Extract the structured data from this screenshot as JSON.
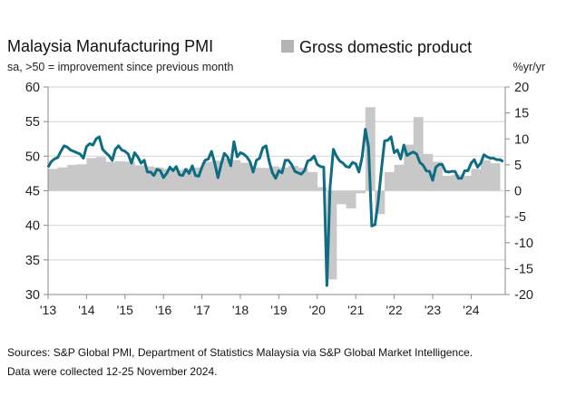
{
  "chart_data": {
    "type": "bar+line",
    "title": "Malaysia Manufacturing PMI",
    "subtitle": "sa, >50 = improvement since previous month",
    "right_axis_label": "%yr/yr",
    "legend": [
      {
        "name": "Gross domestic product",
        "color": "#c8c8c8",
        "position": "top-right"
      }
    ],
    "x_tick_labels": [
      "'13",
      "'14",
      "'15",
      "'16",
      "'17",
      "'18",
      "'19",
      "'20",
      "'21",
      "'22",
      "'23",
      "'24"
    ],
    "left_axis": {
      "ylim": [
        30,
        60
      ],
      "ticks": [
        "30",
        "35",
        "40",
        "45",
        "50",
        "55",
        "60"
      ]
    },
    "right_axis": {
      "ylim": [
        -20,
        20
      ],
      "ticks": [
        "-20",
        "-15",
        "-10",
        "-5",
        "0",
        "5",
        "10",
        "15",
        "20"
      ]
    },
    "grid": true,
    "pmi_series": {
      "axis": "left",
      "color": "#0e6d82",
      "frequency": "monthly",
      "start": "2013-01",
      "end": "2024-11",
      "values": [
        48.4,
        49.2,
        49.6,
        49.8,
        50.7,
        51.5,
        51.3,
        50.9,
        50.7,
        50.5,
        50.3,
        49.7,
        51.4,
        51.8,
        51.6,
        52.5,
        52.8,
        51.0,
        50.5,
        50.1,
        49.4,
        51.0,
        51.5,
        50.9,
        50.7,
        50.3,
        49.0,
        50.5,
        49.9,
        49.0,
        49.4,
        47.7,
        47.7,
        47.2,
        48.1,
        47.9,
        46.9,
        47.5,
        48.4,
        47.9,
        48.5,
        47.3,
        47.2,
        48.1,
        47.5,
        48.6,
        47.2,
        47.1,
        48.4,
        49.4,
        49.6,
        50.7,
        49.0,
        46.9,
        48.8,
        50.4,
        49.9,
        48.6,
        52.1,
        49.9,
        50.5,
        50.3,
        49.9,
        49.2,
        47.7,
        49.4,
        49.7,
        51.2,
        51.5,
        49.2,
        47.6,
        46.8,
        47.9,
        47.6,
        49.4,
        49.4,
        48.8,
        47.8,
        47.6,
        47.4,
        47.9,
        49.3,
        49.5,
        50.0,
        48.8,
        48.5,
        48.4,
        31.3,
        45.6,
        51.0,
        50.0,
        49.3,
        49.0,
        48.5,
        48.4,
        49.1,
        48.9,
        47.7,
        49.9,
        53.9,
        51.3,
        39.9,
        40.1,
        43.4,
        48.1,
        52.2,
        52.3,
        52.8,
        50.5,
        50.9,
        49.6,
        51.6,
        50.1,
        50.4,
        50.6,
        50.3,
        49.1,
        48.7,
        47.9,
        47.8,
        46.5,
        48.4,
        48.8,
        48.8,
        47.8,
        47.7,
        47.8,
        47.8,
        46.8,
        46.8,
        47.9,
        47.9,
        49.0,
        49.5,
        48.4,
        49.0,
        50.2,
        49.9,
        49.7,
        49.7,
        49.5,
        49.5,
        49.2
      ]
    },
    "gdp_series": {
      "name": "Gross domestic product",
      "axis": "right",
      "color": "#c8c8c8",
      "frequency": "quarterly",
      "start": "2013-Q1",
      "end": "2024-Q3",
      "values": [
        4.2,
        4.5,
        5.0,
        5.1,
        6.3,
        6.5,
        5.6,
        5.7,
        5.6,
        4.9,
        4.7,
        4.5,
        4.2,
        4.0,
        4.3,
        4.5,
        5.6,
        5.8,
        6.2,
        5.9,
        5.4,
        4.5,
        4.4,
        4.7,
        4.5,
        4.8,
        4.4,
        3.6,
        0.7,
        -17.1,
        -2.6,
        -3.4,
        -0.5,
        16.1,
        -4.5,
        3.6,
        5.0,
        8.9,
        14.2,
        7.1,
        5.6,
        2.9,
        3.1,
        2.9,
        4.2,
        5.9,
        5.3
      ]
    }
  },
  "footer": {
    "line1": "Sources: S&P Global PMI, Department of Statistics Malaysia via S&P Global Market Intelligence.",
    "line2": "Data were collected 12-25 November 2024."
  }
}
